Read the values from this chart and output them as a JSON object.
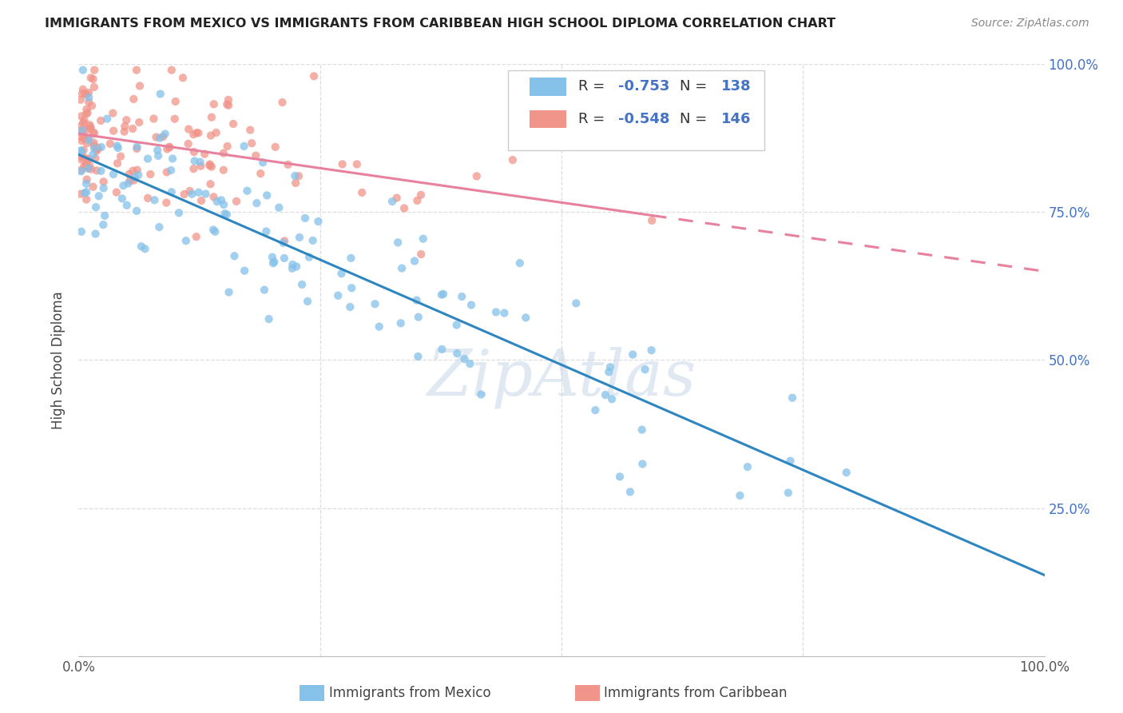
{
  "title": "IMMIGRANTS FROM MEXICO VS IMMIGRANTS FROM CARIBBEAN HIGH SCHOOL DIPLOMA CORRELATION CHART",
  "source": "Source: ZipAtlas.com",
  "ylabel": "High School Diploma",
  "mexico_R": -0.753,
  "mexico_N": 138,
  "caribbean_R": -0.548,
  "caribbean_N": 146,
  "mexico_color": "#85c1e9",
  "caribbean_color": "#f1948a",
  "mexico_line_color": "#2e86c1",
  "caribbean_line_color": "#e8819e",
  "legend_mexico": "Immigrants from Mexico",
  "legend_caribbean": "Immigrants from Caribbean",
  "watermark": "ZipAtlas",
  "marker_size": 55,
  "alpha": 0.75,
  "background_color": "#ffffff",
  "grid_color": "#dddddd"
}
